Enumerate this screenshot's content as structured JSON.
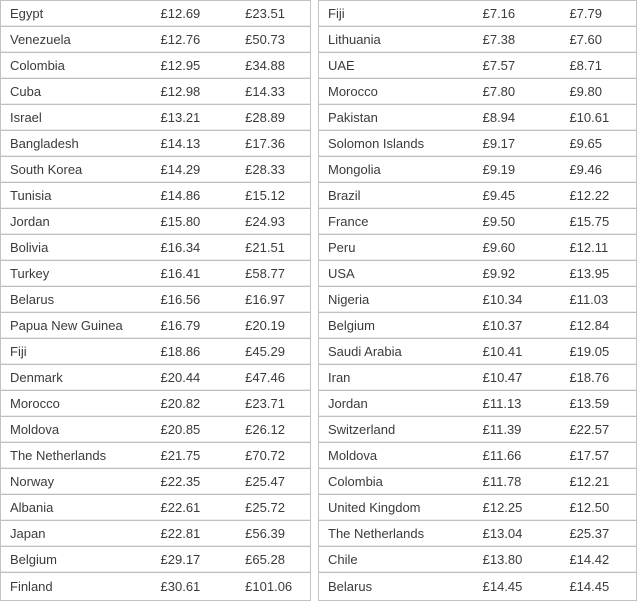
{
  "currency_symbol": "£",
  "chart_data": [
    {
      "type": "table",
      "name": "left-price-table",
      "columns": [
        "country",
        "price_1",
        "price_2"
      ],
      "rows": [
        [
          "Egypt",
          "£12.69",
          "£23.51"
        ],
        [
          "Venezuela",
          "£12.76",
          "£50.73"
        ],
        [
          "Colombia",
          "£12.95",
          "£34.88"
        ],
        [
          "Cuba",
          "£12.98",
          "£14.33"
        ],
        [
          "Israel",
          "£13.21",
          "£28.89"
        ],
        [
          "Bangladesh",
          "£14.13",
          "£17.36"
        ],
        [
          "South Korea",
          "£14.29",
          "£28.33"
        ],
        [
          "Tunisia",
          "£14.86",
          "£15.12"
        ],
        [
          "Jordan",
          "£15.80",
          "£24.93"
        ],
        [
          "Bolivia",
          "£16.34",
          "£21.51"
        ],
        [
          "Turkey",
          "£16.41",
          "£58.77"
        ],
        [
          "Belarus",
          "£16.56",
          "£16.97"
        ],
        [
          "Papua New Guinea",
          "£16.79",
          "£20.19"
        ],
        [
          "Fiji",
          "£18.86",
          "£45.29"
        ],
        [
          "Denmark",
          "£20.44",
          "£47.46"
        ],
        [
          "Morocco",
          "£20.82",
          "£23.71"
        ],
        [
          "Moldova",
          "£20.85",
          "£26.12"
        ],
        [
          "The Netherlands",
          "£21.75",
          "£70.72"
        ],
        [
          "Norway",
          "£22.35",
          "£25.47"
        ],
        [
          "Albania",
          "£22.61",
          "£25.72"
        ],
        [
          "Japan",
          "£22.81",
          "£56.39"
        ],
        [
          "Belgium",
          "£29.17",
          "£65.28"
        ],
        [
          "Finland",
          "£30.61",
          "£101.06"
        ]
      ]
    },
    {
      "type": "table",
      "name": "right-price-table",
      "columns": [
        "country",
        "price_1",
        "price_2"
      ],
      "rows": [
        [
          "Fiji",
          "£7.16",
          "£7.79"
        ],
        [
          "Lithuania",
          "£7.38",
          "£7.60"
        ],
        [
          "UAE",
          "£7.57",
          "£8.71"
        ],
        [
          "Morocco",
          "£7.80",
          "£9.80"
        ],
        [
          "Pakistan",
          "£8.94",
          "£10.61"
        ],
        [
          "Solomon Islands",
          "£9.17",
          "£9.65"
        ],
        [
          "Mongolia",
          "£9.19",
          "£9.46"
        ],
        [
          "Brazil",
          "£9.45",
          "£12.22"
        ],
        [
          "France",
          "£9.50",
          "£15.75"
        ],
        [
          "Peru",
          "£9.60",
          "£12.11"
        ],
        [
          "USA",
          "£9.92",
          "£13.95"
        ],
        [
          "Nigeria",
          "£10.34",
          "£11.03"
        ],
        [
          "Belgium",
          "£10.37",
          "£12.84"
        ],
        [
          "Saudi Arabia",
          "£10.41",
          "£19.05"
        ],
        [
          "Iran",
          "£10.47",
          "£18.76"
        ],
        [
          "Jordan",
          "£11.13",
          "£13.59"
        ],
        [
          "Switzerland",
          "£11.39",
          "£22.57"
        ],
        [
          "Moldova",
          "£11.66",
          "£17.57"
        ],
        [
          "Colombia",
          "£11.78",
          "£12.21"
        ],
        [
          "United Kingdom",
          "£12.25",
          "£12.50"
        ],
        [
          "The Netherlands",
          "£13.04",
          "£25.37"
        ],
        [
          "Chile",
          "£13.80",
          "£14.42"
        ],
        [
          "Belarus",
          "£14.45",
          "£14.45"
        ]
      ]
    }
  ]
}
